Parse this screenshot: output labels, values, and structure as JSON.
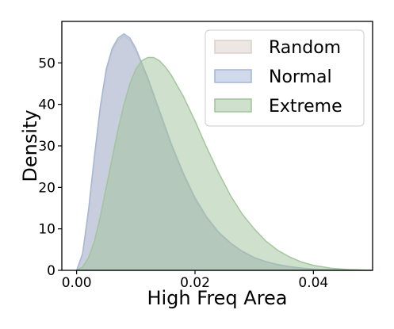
{
  "chart_data": {
    "type": "area",
    "title": "",
    "xlabel": "High Freq Area",
    "ylabel": "Density",
    "xlim": [
      -0.0025,
      0.05
    ],
    "ylim": [
      0,
      60
    ],
    "x_ticks": [
      {
        "value": 0.0,
        "label": "0.00"
      },
      {
        "value": 0.02,
        "label": "0.02"
      },
      {
        "value": 0.04,
        "label": "0.04"
      }
    ],
    "y_ticks": [
      {
        "value": 0,
        "label": "0"
      },
      {
        "value": 10,
        "label": "10"
      },
      {
        "value": 20,
        "label": "20"
      },
      {
        "value": 30,
        "label": "30"
      },
      {
        "value": 40,
        "label": "40"
      },
      {
        "value": 50,
        "label": "50"
      }
    ],
    "grid": false,
    "legend_position": "top-right",
    "series": [
      {
        "name": "Random",
        "color": "#d9cfc9",
        "x": [
          0.0,
          0.001,
          0.002,
          0.003,
          0.004,
          0.005,
          0.006,
          0.007,
          0.008,
          0.009,
          0.01,
          0.012,
          0.014,
          0.016,
          0.018,
          0.02,
          0.022,
          0.024,
          0.026,
          0.028,
          0.03,
          0.032,
          0.034,
          0.036,
          0.038,
          0.04,
          0.043,
          0.046,
          0.05
        ],
        "values": [
          0,
          4,
          14,
          27,
          39,
          48,
          53,
          55.5,
          56.5,
          55.5,
          53,
          46,
          38,
          30,
          23,
          17,
          12.5,
          9,
          6.5,
          4.5,
          3,
          2,
          1.3,
          0.8,
          0.5,
          0.3,
          0.15,
          0.05,
          0
        ]
      },
      {
        "name": "Normal",
        "color": "#a3b5d6",
        "x": [
          0.0,
          0.001,
          0.002,
          0.003,
          0.004,
          0.005,
          0.006,
          0.007,
          0.008,
          0.009,
          0.01,
          0.012,
          0.014,
          0.016,
          0.018,
          0.02,
          0.022,
          0.024,
          0.026,
          0.028,
          0.03,
          0.032,
          0.034,
          0.036,
          0.038,
          0.04,
          0.043,
          0.046,
          0.05
        ],
        "values": [
          0,
          4,
          14.5,
          27.5,
          39.5,
          48.5,
          53.5,
          56,
          57,
          56,
          53.5,
          46.5,
          38.5,
          30.5,
          23.5,
          17.5,
          12.8,
          9.2,
          6.6,
          4.6,
          3.1,
          2.1,
          1.4,
          0.9,
          0.55,
          0.3,
          0.15,
          0.05,
          0
        ]
      },
      {
        "name": "Extreme",
        "color": "#9fc499",
        "x": [
          0.0,
          0.001,
          0.002,
          0.003,
          0.004,
          0.005,
          0.006,
          0.007,
          0.008,
          0.009,
          0.01,
          0.011,
          0.012,
          0.013,
          0.014,
          0.015,
          0.016,
          0.018,
          0.02,
          0.022,
          0.024,
          0.026,
          0.028,
          0.03,
          0.032,
          0.034,
          0.036,
          0.038,
          0.04,
          0.043,
          0.046,
          0.05
        ],
        "values": [
          0,
          0.8,
          3,
          7,
          13,
          20,
          27,
          34,
          40,
          45,
          48.5,
          50.5,
          51.3,
          51.3,
          50.5,
          49,
          47,
          42,
          36,
          29.5,
          23.5,
          18,
          13.5,
          10,
          7,
          4.8,
          3.2,
          2,
          1.2,
          0.5,
          0.2,
          0
        ]
      }
    ]
  }
}
